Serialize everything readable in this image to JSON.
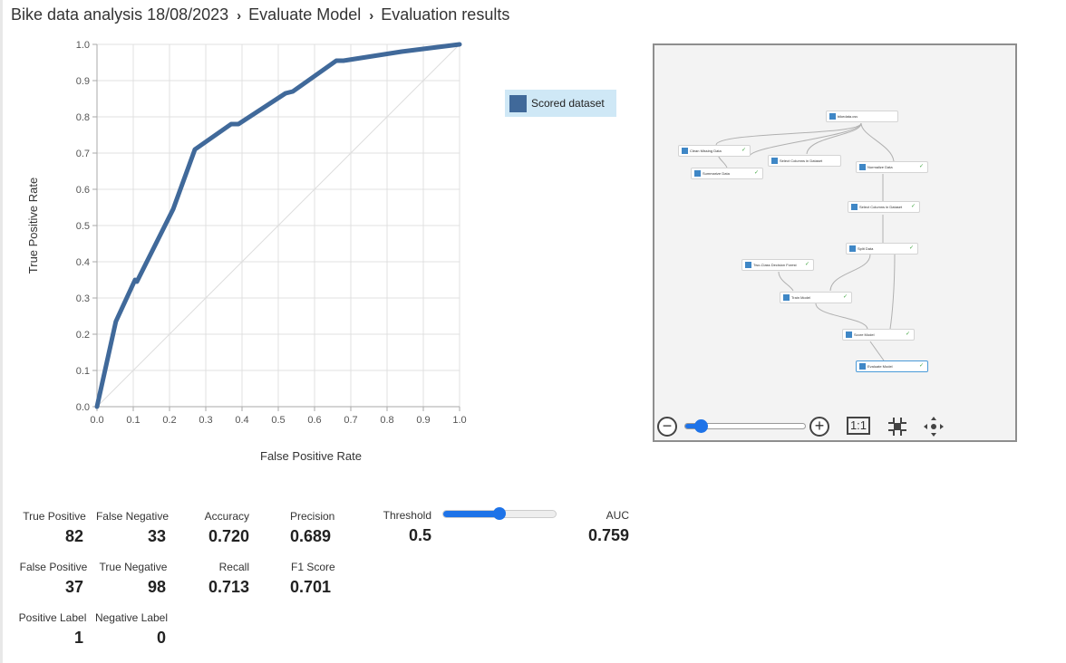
{
  "breadcrumb": {
    "items": [
      "Bike data analysis 18/08/2023",
      "Evaluate Model",
      "Evaluation results"
    ],
    "separator": "›"
  },
  "chart_data": {
    "type": "line",
    "title": "",
    "xlabel": "False Positive Rate",
    "ylabel": "True Positive Rate",
    "xlim": [
      0,
      1
    ],
    "ylim": [
      0,
      1
    ],
    "grid": true,
    "x_ticks": [
      "0.0",
      "0.1",
      "0.2",
      "0.3",
      "0.4",
      "0.5",
      "0.6",
      "0.7",
      "0.8",
      "0.9",
      "1.0"
    ],
    "y_ticks": [
      "0.0",
      "0.1",
      "0.2",
      "0.3",
      "0.4",
      "0.5",
      "0.6",
      "0.7",
      "0.8",
      "0.9",
      "1.0"
    ],
    "legend_position": "right",
    "series": [
      {
        "name": "Scored dataset",
        "color": "#40699a",
        "x": [
          0,
          0.052,
          0.105,
          0.11,
          0.21,
          0.27,
          0.37,
          0.39,
          0.52,
          0.54,
          0.66,
          0.68,
          0.84,
          1.0
        ],
        "y": [
          0,
          0.235,
          0.35,
          0.345,
          0.545,
          0.71,
          0.78,
          0.78,
          0.865,
          0.87,
          0.955,
          0.955,
          0.98,
          1.0
        ]
      },
      {
        "name": "",
        "color": "#dddddd",
        "x": [
          0,
          1
        ],
        "y": [
          0,
          1
        ]
      }
    ]
  },
  "legend": {
    "label": "Scored dataset",
    "color": "#40699a"
  },
  "pipeline": {
    "nodes": {
      "bikedata": "bikedata.csv",
      "clean": "Clean Missing Data",
      "select1": "Select Columns in Dataset",
      "normalize": "Normalize Data",
      "summarize": "Summarize Data",
      "select2": "Select Columns in Dataset",
      "split": "Split Data",
      "forest": "Two-Class Decision Forest",
      "train": "Train Model",
      "score": "Score Model",
      "evaluate": "Evaluate Model"
    },
    "check": "✓",
    "zoom": {
      "minus": "−",
      "plus": "+",
      "one_to_one": "1:1",
      "level": 0.08
    }
  },
  "metrics": {
    "true_positive": {
      "label": "True Positive",
      "value": "82"
    },
    "false_negative": {
      "label": "False Negative",
      "value": "33"
    },
    "false_positive": {
      "label": "False Positive",
      "value": "37"
    },
    "true_negative": {
      "label": "True Negative",
      "value": "98"
    },
    "positive_label": {
      "label": "Positive Label",
      "value": "1"
    },
    "negative_label": {
      "label": "Negative Label",
      "value": "0"
    },
    "accuracy": {
      "label": "Accuracy",
      "value": "0.720"
    },
    "precision": {
      "label": "Precision",
      "value": "0.689"
    },
    "recall": {
      "label": "Recall",
      "value": "0.713"
    },
    "f1": {
      "label": "F1 Score",
      "value": "0.701"
    },
    "threshold": {
      "label": "Threshold",
      "value": "0.5",
      "slider_level": 0.5
    },
    "auc": {
      "label": "AUC",
      "value": "0.759"
    }
  }
}
